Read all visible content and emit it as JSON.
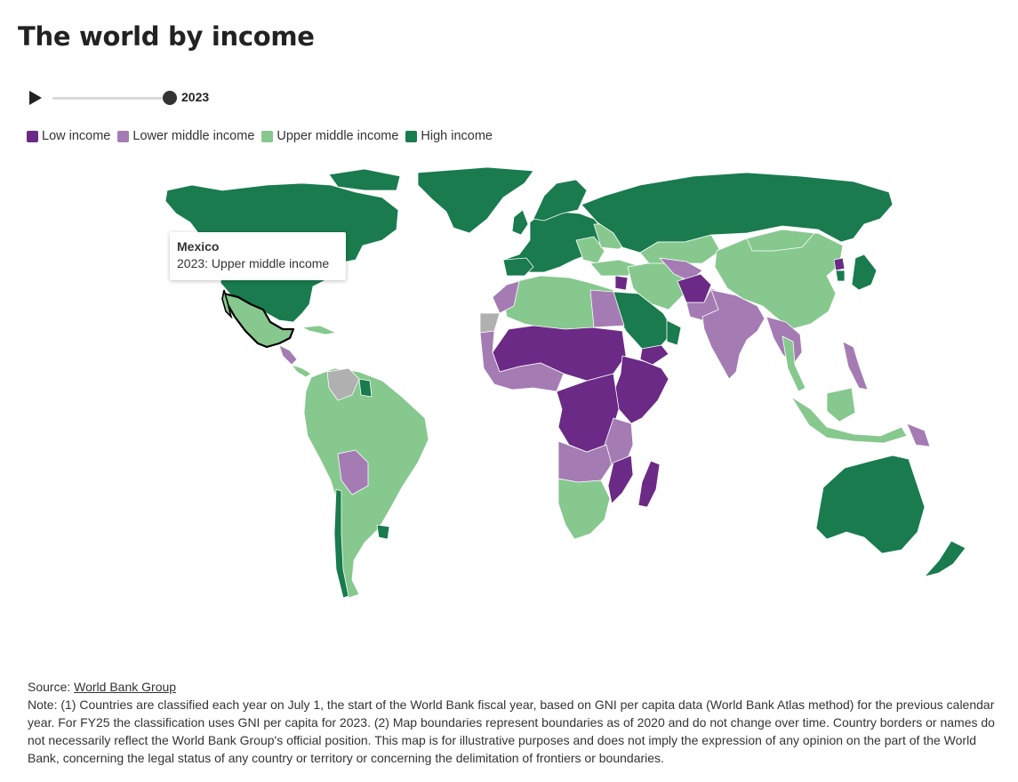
{
  "title": "The world by income",
  "controls": {
    "play_icon": "play-icon",
    "year": "2023",
    "progress": 1.0
  },
  "legend": [
    {
      "label": "Low income",
      "color": "#6b2a86"
    },
    {
      "label": "Lower middle income",
      "color": "#a47cb3"
    },
    {
      "label": "Upper middle income",
      "color": "#86c88e"
    },
    {
      "label": "High income",
      "color": "#197b4e"
    }
  ],
  "no_data_color": "#b0b0b0",
  "tooltip": {
    "country": "Mexico",
    "value": "2023: Upper middle income"
  },
  "source": {
    "label": "Source: ",
    "link_text": "World Bank Group"
  },
  "note": "Note: (1) Countries are classified each year on July 1, the start of the World Bank fiscal year, based on GNI per capita data (World Bank Atlas method) for the previous calendar year. For FY25 the classification uses GNI per capita for 2023. (2) Map boundaries represent boundaries as of 2020 and do not change over time. Country borders or names do not necessarily reflect the World Bank Group's official position. This map is for illustrative purposes and does not imply the expression of any opinion on the part of the World Bank, concerning the legal status of any country or territory or concerning the delimitation of frontiers or boundaries."
}
